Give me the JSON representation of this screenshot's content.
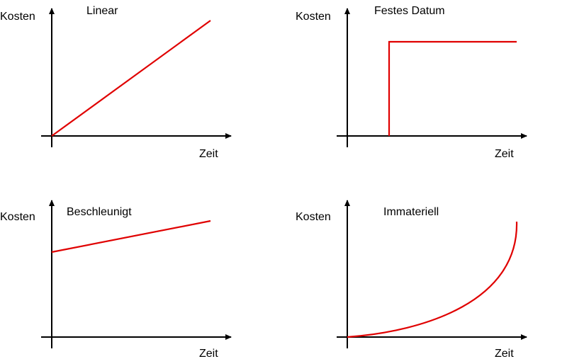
{
  "panels": [
    {
      "title": "Linear",
      "y_label": "Kosten",
      "x_label": "Zeit"
    },
    {
      "title": "Festes Datum",
      "y_label": "Kosten",
      "x_label": "Zeit"
    },
    {
      "title": "Beschleunigt",
      "y_label": "Kosten",
      "x_label": "Zeit"
    },
    {
      "title": "Immateriell",
      "y_label": "Kosten",
      "x_label": "Zeit"
    }
  ]
}
